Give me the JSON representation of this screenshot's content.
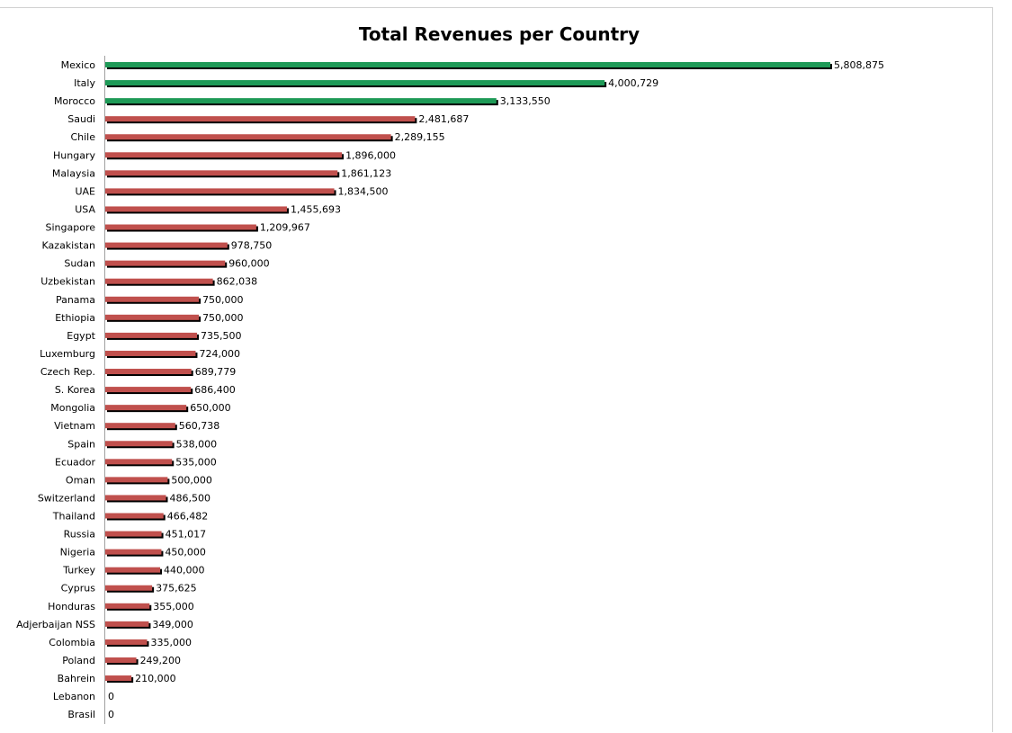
{
  "chart_data": {
    "type": "bar",
    "orientation": "horizontal",
    "title": "Total Revenues per Country",
    "xlabel": "",
    "ylabel": "",
    "xlim": [
      0,
      5808875
    ],
    "grid": false,
    "legend": "none",
    "highlight_count": 3,
    "colors": {
      "highlight": "#1e9a57",
      "normal": "#c0504d",
      "shadow": "#000000"
    },
    "categories": [
      "Mexico",
      "Italy",
      "Morocco",
      "Saudi",
      "Chile",
      "Hungary",
      "Malaysia",
      "UAE",
      "USA",
      "Singapore",
      "Kazakistan",
      "Sudan",
      "Uzbekistan",
      "Panama",
      "Ethiopia",
      "Egypt",
      "Luxemburg",
      "Czech Rep.",
      "S. Korea",
      "Mongolia",
      "Vietnam",
      "Spain",
      "Ecuador",
      "Oman",
      "Switzerland",
      "Thailand",
      "Russia",
      "Nigeria",
      "Turkey",
      "Cyprus",
      "Honduras",
      "Adjerbaijan NSS",
      "Colombia",
      "Poland",
      "Bahrein",
      "Lebanon",
      "Brasil"
    ],
    "values": [
      5808875,
      4000729,
      3133550,
      2481687,
      2289155,
      1896000,
      1861123,
      1834500,
      1455693,
      1209967,
      978750,
      960000,
      862038,
      750000,
      750000,
      735500,
      724000,
      689779,
      686400,
      650000,
      560738,
      538000,
      535000,
      500000,
      486500,
      466482,
      451017,
      450000,
      440000,
      375625,
      355000,
      349000,
      335000,
      249200,
      210000,
      0,
      0
    ],
    "labels": [
      "5,808,875",
      "4,000,729",
      "3,133,550",
      "2,481,687",
      "2,289,155",
      "1,896,000",
      "1,861,123",
      "1,834,500",
      "1,455,693",
      "1,209,967",
      "978,750",
      "960,000",
      "862,038",
      "750,000",
      "750,000",
      "735,500",
      "724,000",
      "689,779",
      "686,400",
      "650,000",
      "560,738",
      "538,000",
      "535,000",
      "500,000",
      "486,500",
      "466,482",
      "451,017",
      "450,000",
      "440,000",
      "375,625",
      "355,000",
      "349,000",
      "335,000",
      "249,200",
      "210,000",
      "0",
      "0"
    ]
  }
}
